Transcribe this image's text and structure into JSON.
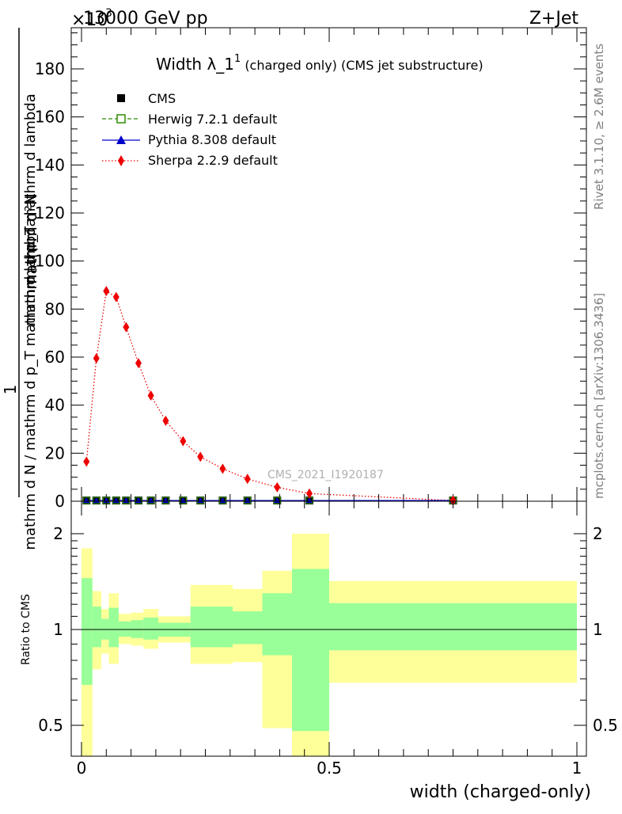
{
  "header": {
    "left": "13000 GeV pp",
    "right": "Z+Jet",
    "exponent": "×10",
    "exponent_power": "-3"
  },
  "side_labels": {
    "rivet": "Rivet 3.1.10, ≥ 2.6M events",
    "mcplots": "mcplots.cern.ch [arXiv:1306.3436]"
  },
  "watermark": "CMS_2021_I1920187",
  "chart_data": [
    {
      "type": "line",
      "title_main": "Width λ_1",
      "title_sup": "1",
      "title_rest": "(charged only) (CMS jet substructure)",
      "ylabel_top": "1",
      "ylabel_bottom": "mathrm d N / mathrm d p_T mathrm d lambda",
      "ylabel_upper": "mathrm d²N",
      "ylabel_bar": "mathrm d p_T mathrm d lambda",
      "xlim": [
        0,
        1
      ],
      "ylim": [
        0,
        200
      ],
      "yticks": [
        0,
        20,
        40,
        60,
        80,
        100,
        120,
        140,
        160,
        180
      ],
      "colors": {
        "CMS": "#000000",
        "Herwig": "#2e8b00",
        "Pythia": "#0000cc",
        "Sherpa": "#ee0000"
      },
      "legend": [
        {
          "name": "CMS",
          "style": "marker"
        },
        {
          "name": "Herwig 7.2.1 default",
          "style": "dashed"
        },
        {
          "name": "Pythia 8.308 default",
          "style": "solid"
        },
        {
          "name": "Sherpa 2.2.9 default",
          "style": "dotted"
        }
      ],
      "series": [
        {
          "name": "Sherpa 2.2.9 default",
          "x": [
            0.01,
            0.03,
            0.05,
            0.07,
            0.09,
            0.115,
            0.14,
            0.17,
            0.205,
            0.24,
            0.285,
            0.335,
            0.395,
            0.46,
            0.75
          ],
          "values": [
            16.5,
            59.5,
            87.5,
            85.0,
            72.5,
            57.5,
            44.0,
            33.5,
            25.0,
            18.5,
            13.5,
            9.3,
            5.8,
            3.2,
            0.3
          ]
        },
        {
          "name": "CMS",
          "x": [
            0.01,
            0.03,
            0.05,
            0.07,
            0.09,
            0.115,
            0.14,
            0.17,
            0.205,
            0.24,
            0.285,
            0.335,
            0.395,
            0.46,
            0.75
          ],
          "values": [
            0.3,
            0.3,
            0.3,
            0.3,
            0.3,
            0.3,
            0.3,
            0.3,
            0.3,
            0.3,
            0.3,
            0.3,
            0.3,
            0.3,
            0.3
          ]
        }
      ]
    },
    {
      "type": "area",
      "ylabel": "Ratio to CMS",
      "xlabel": "width (charged-only)",
      "xlim": [
        0,
        1
      ],
      "ylim": [
        0.4,
        2.3
      ],
      "log_y": true,
      "yticks_labels": [
        "0.5",
        "1",
        "2"
      ],
      "xticks_labels": [
        "0",
        "0.5",
        "1"
      ],
      "colors": {
        "band_outer": "#ffff99",
        "band_inner": "#99ff99"
      },
      "bins": [
        {
          "x0": 0.0,
          "x1": 0.022,
          "inner": [
            0.67,
            1.45
          ],
          "outer": [
            0.35,
            1.8
          ]
        },
        {
          "x0": 0.022,
          "x1": 0.04,
          "inner": [
            0.88,
            1.18
          ],
          "outer": [
            0.75,
            1.32
          ]
        },
        {
          "x0": 0.04,
          "x1": 0.055,
          "inner": [
            0.93,
            1.08
          ],
          "outer": [
            0.84,
            1.16
          ]
        },
        {
          "x0": 0.055,
          "x1": 0.075,
          "inner": [
            0.88,
            1.17
          ],
          "outer": [
            0.78,
            1.3
          ]
        },
        {
          "x0": 0.075,
          "x1": 0.1,
          "inner": [
            0.95,
            1.06
          ],
          "outer": [
            0.9,
            1.12
          ]
        },
        {
          "x0": 0.1,
          "x1": 0.125,
          "inner": [
            0.94,
            1.07
          ],
          "outer": [
            0.89,
            1.13
          ]
        },
        {
          "x0": 0.125,
          "x1": 0.155,
          "inner": [
            0.93,
            1.09
          ],
          "outer": [
            0.87,
            1.16
          ]
        },
        {
          "x0": 0.155,
          "x1": 0.22,
          "inner": [
            0.95,
            1.05
          ],
          "outer": [
            0.91,
            1.1
          ]
        },
        {
          "x0": 0.22,
          "x1": 0.305,
          "inner": [
            0.88,
            1.18
          ],
          "outer": [
            0.78,
            1.38
          ]
        },
        {
          "x0": 0.305,
          "x1": 0.365,
          "inner": [
            0.9,
            1.14
          ],
          "outer": [
            0.79,
            1.34
          ]
        },
        {
          "x0": 0.365,
          "x1": 0.425,
          "inner": [
            0.83,
            1.3
          ],
          "outer": [
            0.49,
            1.53
          ]
        },
        {
          "x0": 0.425,
          "x1": 0.5,
          "inner": [
            0.48,
            1.55
          ],
          "outer": [
            0.3,
            2.0
          ]
        },
        {
          "x0": 0.5,
          "x1": 1.0,
          "inner": [
            0.86,
            1.21
          ],
          "outer": [
            0.68,
            1.42
          ]
        }
      ]
    }
  ]
}
